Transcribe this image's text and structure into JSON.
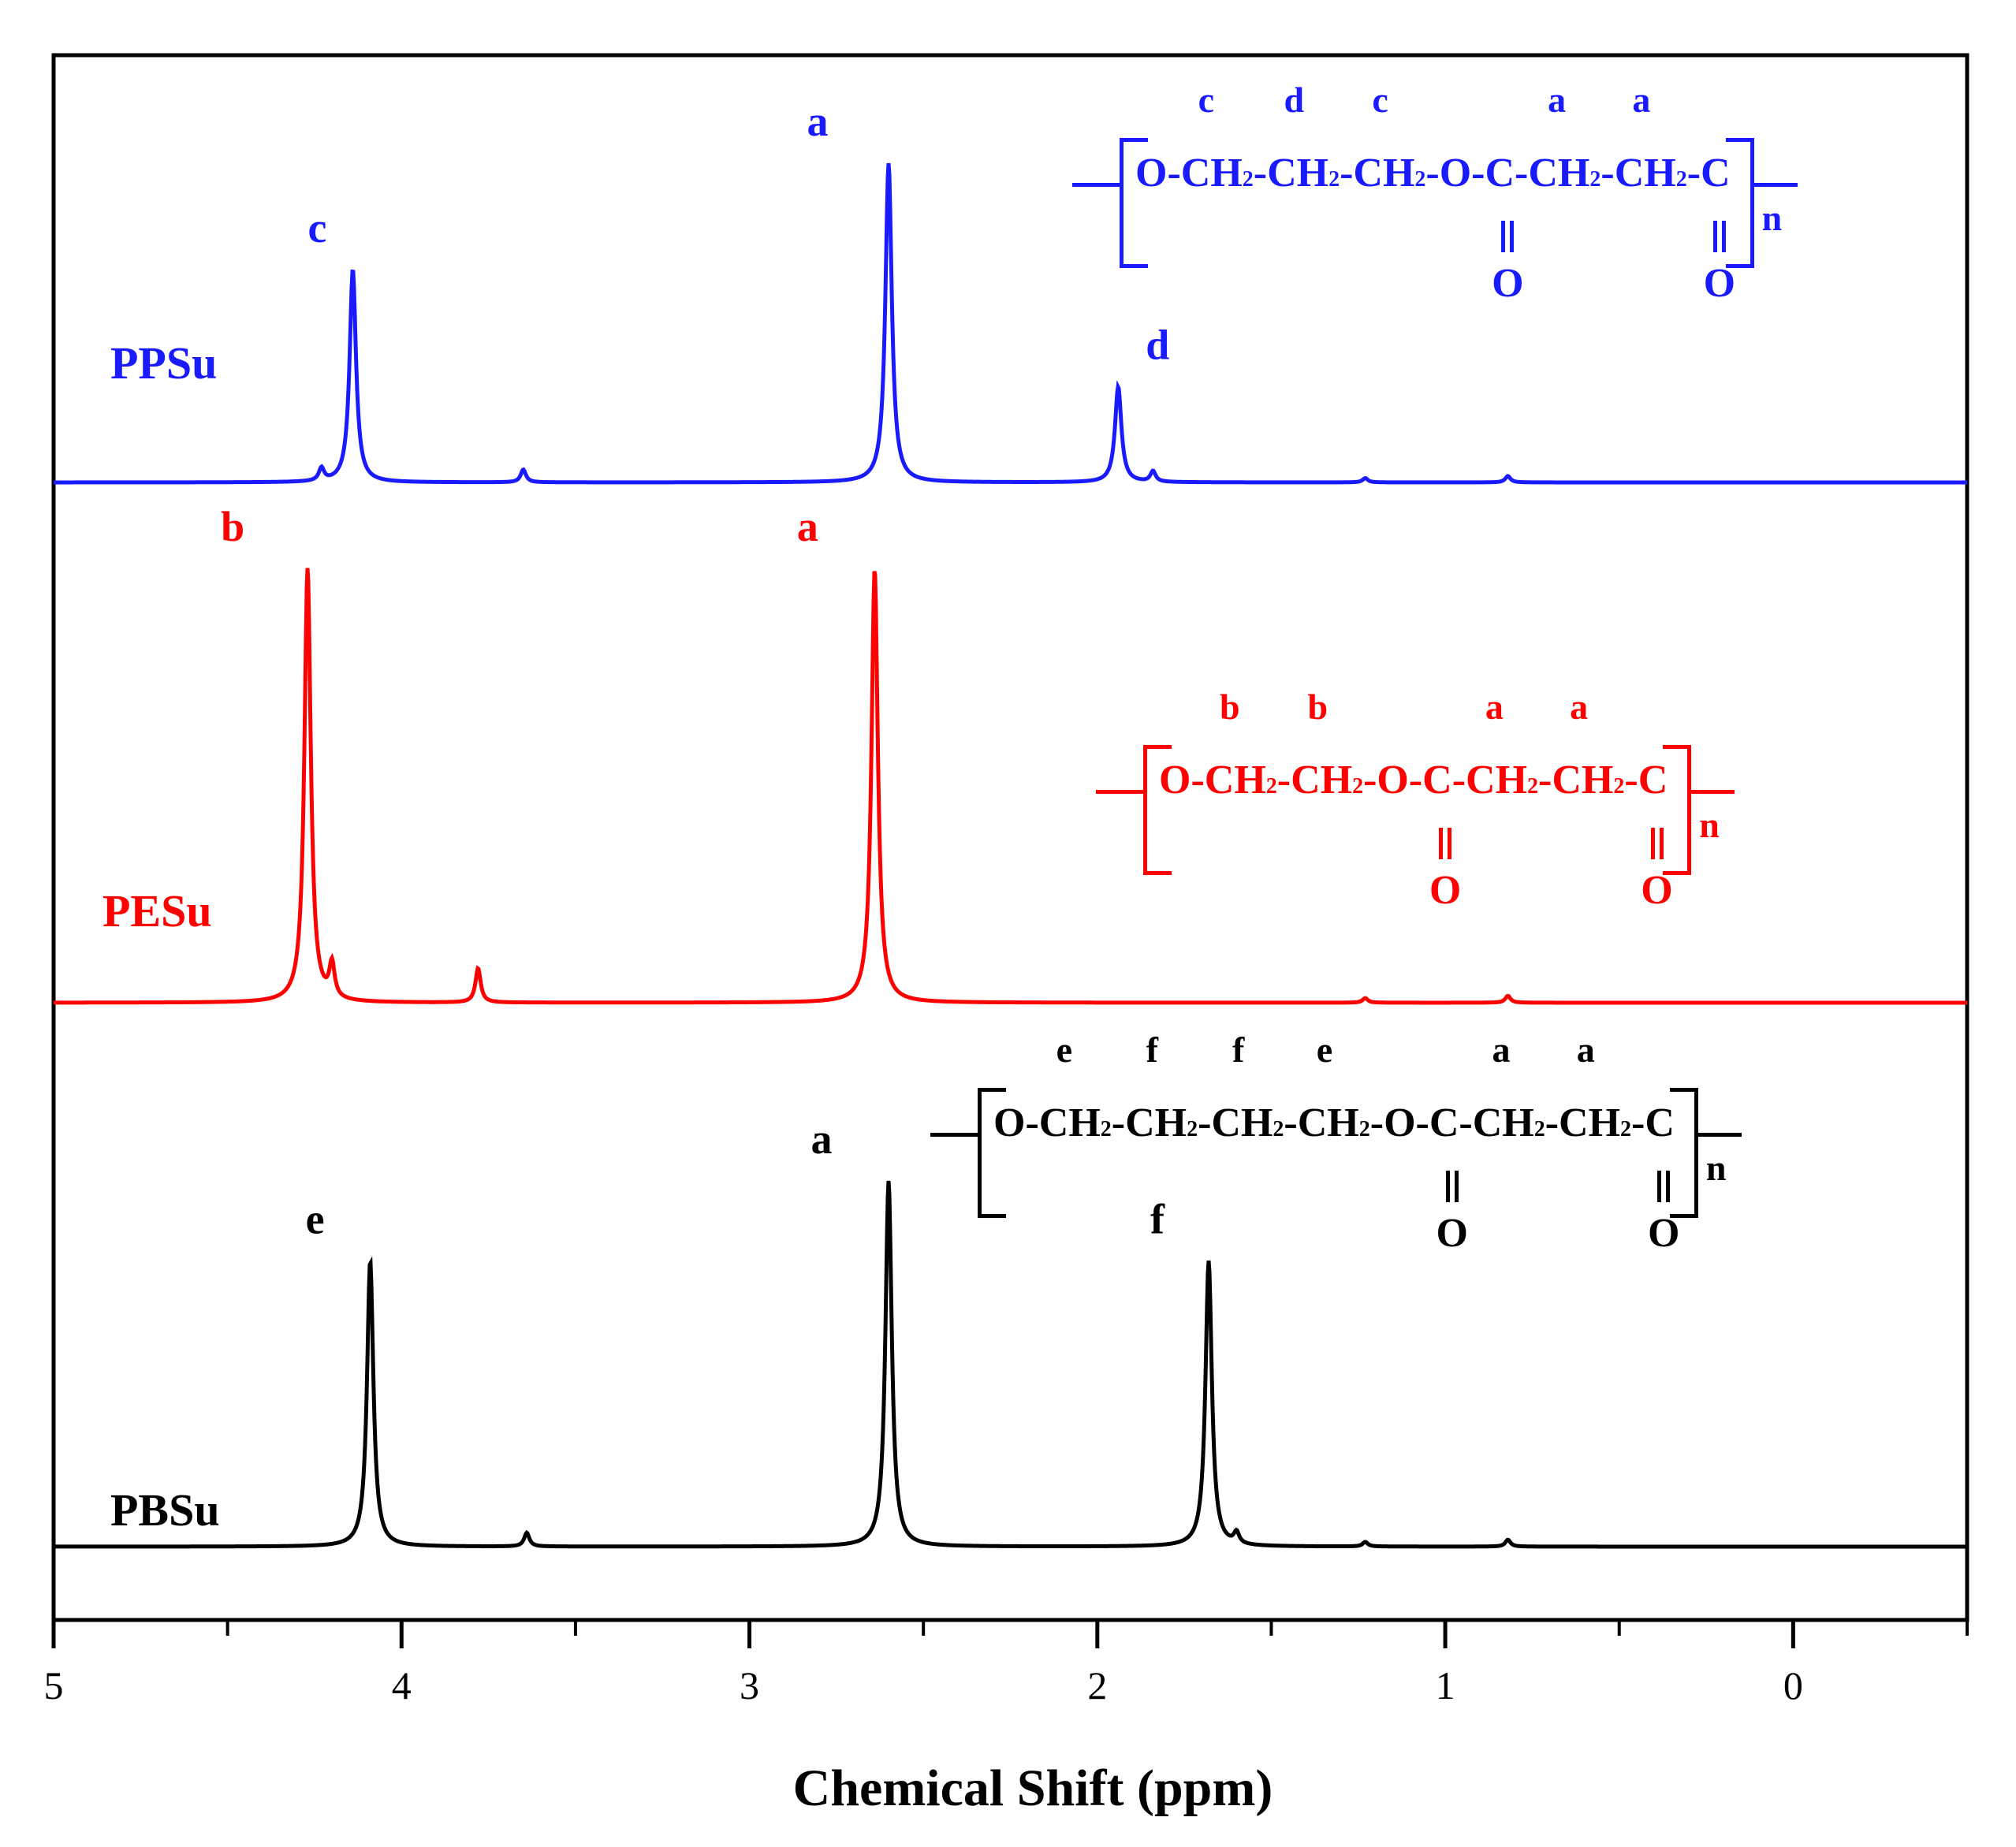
{
  "chart_data": {
    "type": "line",
    "title": "",
    "xlabel": "Chemical Shift (ppm)",
    "ylabel": "",
    "xlim": [
      5,
      -0.5
    ],
    "x_ticks": [
      "5",
      "4",
      "3",
      "2",
      "1",
      "0"
    ],
    "x_tick_values": [
      5,
      4,
      3,
      2,
      1,
      0
    ],
    "series": [
      {
        "name": "PPSu",
        "color": "#1a1aff",
        "peaks": [
          {
            "ppm": 4.14,
            "height": 1.0,
            "label": "c"
          },
          {
            "ppm": 4.23,
            "height": 0.06,
            "label": ""
          },
          {
            "ppm": 3.65,
            "height": 0.06,
            "label": ""
          },
          {
            "ppm": 2.6,
            "height": 1.5,
            "label": "a"
          },
          {
            "ppm": 1.94,
            "height": 0.45,
            "label": "d"
          },
          {
            "ppm": 1.84,
            "height": 0.05,
            "label": ""
          },
          {
            "ppm": 1.23,
            "height": 0.02,
            "label": ""
          },
          {
            "ppm": 0.82,
            "height": 0.03,
            "label": ""
          }
        ],
        "structure": {
          "labels": [
            "c",
            "d",
            "c",
            "a",
            "a"
          ],
          "chain": [
            "O-CH",
            "2",
            "-CH",
            "2",
            "-CH",
            "2",
            "-O-C-CH",
            "2",
            "-CH",
            "2",
            "-C"
          ],
          "oxygen": "O",
          "n": "n"
        }
      },
      {
        "name": "PESu",
        "color": "#ff0000",
        "peaks": [
          {
            "ppm": 4.27,
            "height": 1.9,
            "label": "b"
          },
          {
            "ppm": 4.2,
            "height": 0.15,
            "label": ""
          },
          {
            "ppm": 3.78,
            "height": 0.15,
            "label": ""
          },
          {
            "ppm": 2.64,
            "height": 1.9,
            "label": "a"
          },
          {
            "ppm": 1.23,
            "height": 0.02,
            "label": ""
          },
          {
            "ppm": 0.82,
            "height": 0.03,
            "label": ""
          }
        ],
        "structure": {
          "labels": [
            "b",
            "b",
            "a",
            "a"
          ],
          "chain": [
            "O-CH",
            "2",
            "-CH",
            "2",
            "-O-C-CH",
            "2",
            "-CH",
            "2",
            "-C"
          ],
          "oxygen": "O",
          "n": "n"
        }
      },
      {
        "name": "PBSu",
        "color": "#000000",
        "peaks": [
          {
            "ppm": 4.09,
            "height": 1.25,
            "label": "e"
          },
          {
            "ppm": 3.64,
            "height": 0.06,
            "label": ""
          },
          {
            "ppm": 2.6,
            "height": 1.6,
            "label": "a"
          },
          {
            "ppm": 1.68,
            "height": 1.25,
            "label": "f"
          },
          {
            "ppm": 1.6,
            "height": 0.05,
            "label": ""
          },
          {
            "ppm": 1.23,
            "height": 0.02,
            "label": ""
          },
          {
            "ppm": 0.82,
            "height": 0.03,
            "label": ""
          }
        ],
        "structure": {
          "labels": [
            "e",
            "f",
            "f",
            "e",
            "a",
            "a"
          ],
          "chain": [
            "O-CH",
            "2",
            "-CH",
            "2",
            "-CH",
            "2",
            "-CH",
            "2",
            "-O-C-CH",
            "2",
            "-CH",
            "2",
            "-C"
          ],
          "oxygen": "O",
          "n": "n"
        }
      }
    ]
  }
}
